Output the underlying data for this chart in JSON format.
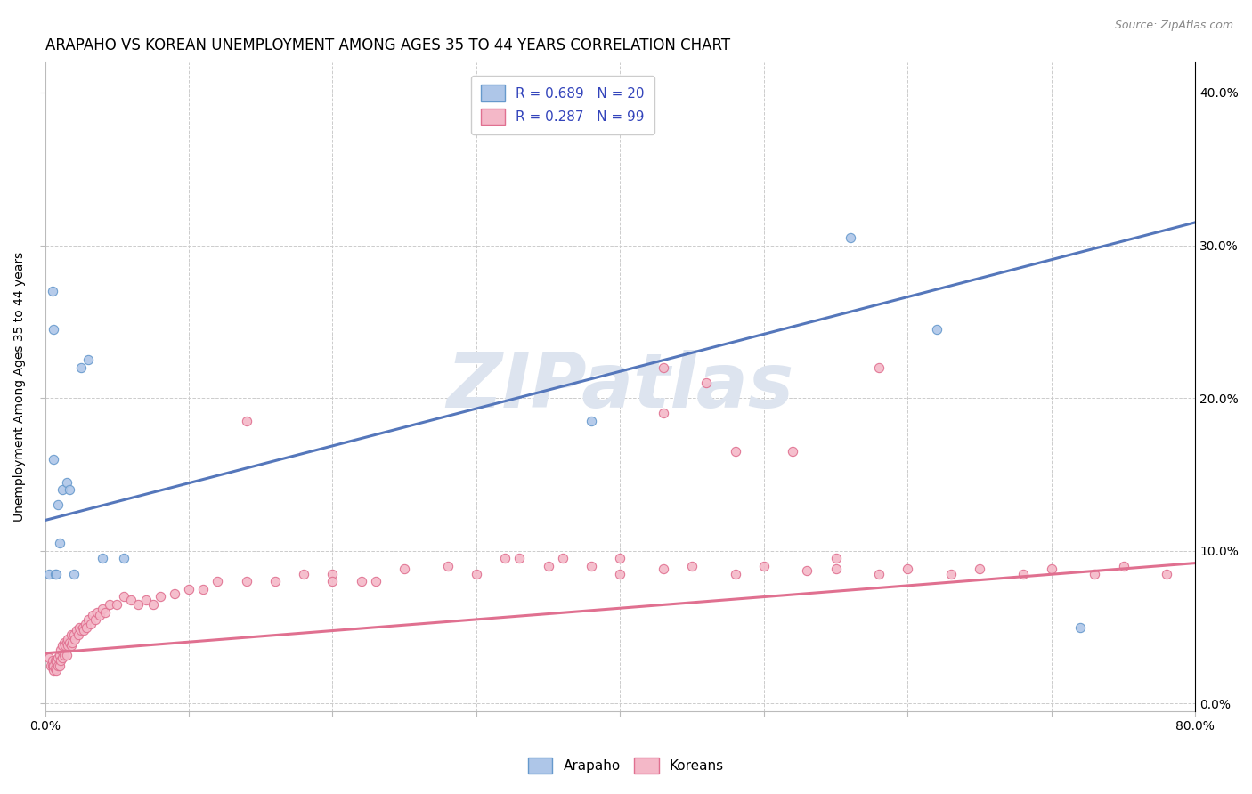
{
  "title": "ARAPAHO VS KOREAN UNEMPLOYMENT AMONG AGES 35 TO 44 YEARS CORRELATION CHART",
  "source": "Source: ZipAtlas.com",
  "ylabel": "Unemployment Among Ages 35 to 44 years",
  "xlim": [
    0.0,
    0.8
  ],
  "ylim": [
    -0.005,
    0.42
  ],
  "watermark": "ZIPatlas",
  "legend_entries": [
    {
      "label": "R = 0.689   N = 20",
      "facecolor": "#aec6e8",
      "edgecolor": "#6699cc"
    },
    {
      "label": "R = 0.287   N = 99",
      "facecolor": "#f4b8c8",
      "edgecolor": "#e07090"
    }
  ],
  "arapaho_scatter_x": [
    0.003,
    0.005,
    0.006,
    0.006,
    0.007,
    0.008,
    0.009,
    0.01,
    0.012,
    0.015,
    0.017,
    0.02,
    0.025,
    0.03,
    0.04,
    0.055,
    0.38,
    0.56,
    0.62,
    0.72
  ],
  "arapaho_scatter_y": [
    0.085,
    0.27,
    0.245,
    0.16,
    0.085,
    0.085,
    0.13,
    0.105,
    0.14,
    0.145,
    0.14,
    0.085,
    0.22,
    0.225,
    0.095,
    0.095,
    0.185,
    0.305,
    0.245,
    0.05
  ],
  "korean_scatter_x": [
    0.003,
    0.004,
    0.005,
    0.005,
    0.006,
    0.006,
    0.007,
    0.007,
    0.008,
    0.008,
    0.009,
    0.009,
    0.01,
    0.01,
    0.011,
    0.011,
    0.012,
    0.012,
    0.013,
    0.013,
    0.014,
    0.015,
    0.015,
    0.016,
    0.016,
    0.017,
    0.018,
    0.018,
    0.019,
    0.02,
    0.021,
    0.022,
    0.023,
    0.024,
    0.025,
    0.026,
    0.027,
    0.028,
    0.029,
    0.03,
    0.032,
    0.033,
    0.035,
    0.036,
    0.038,
    0.04,
    0.042,
    0.045,
    0.05,
    0.055,
    0.06,
    0.065,
    0.07,
    0.075,
    0.08,
    0.09,
    0.1,
    0.11,
    0.12,
    0.14,
    0.16,
    0.18,
    0.2,
    0.22,
    0.25,
    0.28,
    0.3,
    0.32,
    0.35,
    0.38,
    0.4,
    0.43,
    0.45,
    0.48,
    0.5,
    0.53,
    0.55,
    0.58,
    0.6,
    0.63,
    0.65,
    0.68,
    0.7,
    0.73,
    0.75,
    0.78,
    0.48,
    0.52,
    0.33,
    0.36,
    0.55,
    0.58,
    0.43,
    0.46,
    0.2,
    0.23,
    0.14,
    0.4,
    0.43
  ],
  "korean_scatter_y": [
    0.03,
    0.025,
    0.025,
    0.028,
    0.022,
    0.025,
    0.023,
    0.028,
    0.022,
    0.028,
    0.025,
    0.03,
    0.025,
    0.032,
    0.028,
    0.035,
    0.03,
    0.038,
    0.032,
    0.04,
    0.038,
    0.032,
    0.04,
    0.038,
    0.042,
    0.04,
    0.038,
    0.045,
    0.04,
    0.045,
    0.042,
    0.048,
    0.045,
    0.05,
    0.048,
    0.05,
    0.048,
    0.052,
    0.05,
    0.055,
    0.052,
    0.058,
    0.055,
    0.06,
    0.058,
    0.062,
    0.06,
    0.065,
    0.065,
    0.07,
    0.068,
    0.065,
    0.068,
    0.065,
    0.07,
    0.072,
    0.075,
    0.075,
    0.08,
    0.08,
    0.08,
    0.085,
    0.085,
    0.08,
    0.088,
    0.09,
    0.085,
    0.095,
    0.09,
    0.09,
    0.095,
    0.088,
    0.09,
    0.085,
    0.09,
    0.087,
    0.088,
    0.085,
    0.088,
    0.085,
    0.088,
    0.085,
    0.088,
    0.085,
    0.09,
    0.085,
    0.165,
    0.165,
    0.095,
    0.095,
    0.095,
    0.22,
    0.22,
    0.21,
    0.08,
    0.08,
    0.185,
    0.085,
    0.19
  ],
  "arapaho_line_x": [
    0.0,
    0.8
  ],
  "arapaho_line_y": [
    0.12,
    0.315
  ],
  "korean_line_x": [
    0.0,
    0.8
  ],
  "korean_line_y": [
    0.033,
    0.092
  ],
  "arapaho_scatter_color": "#aec6e8",
  "arapaho_scatter_edge": "#6699cc",
  "arapaho_line_color": "#5577bb",
  "korean_scatter_color": "#f4b8c8",
  "korean_scatter_edge": "#e07090",
  "korean_line_color": "#e07090",
  "background_color": "#ffffff",
  "grid_color": "#cccccc",
  "title_fontsize": 12,
  "axis_fontsize": 10,
  "tick_fontsize": 10,
  "scatter_size": 55,
  "watermark_color": "#dde4ef",
  "watermark_fontsize": 62
}
